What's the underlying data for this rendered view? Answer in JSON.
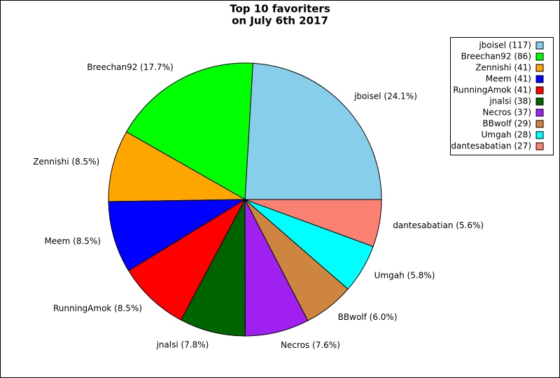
{
  "chart_data": {
    "type": "pie",
    "title": [
      "Top 10 favoriters",
      "on July 6th 2017"
    ],
    "categories": [
      "jboisel (117)",
      "Breechan92 (86)",
      "Zennishi (41)",
      "Meem (41)",
      "RunningAmok (41)",
      "jnalsi (38)",
      "Necros (37)",
      "BBwolf (29)",
      "Umgah (28)",
      "dantesabatian (27)"
    ],
    "values": [
      24.1,
      17.7,
      8.5,
      8.5,
      8.5,
      7.8,
      7.6,
      6.0,
      5.8,
      5.6
    ],
    "value_labels": [
      "jboisel (24.1%)",
      "Breechan92 (17.7%)",
      "Zennishi (8.5%)",
      "Meem (8.5%)",
      "RunningAmok (8.5%)",
      "jnalsi (7.8%)",
      "Necros (7.6%)",
      "BBwolf (6.0%)",
      "Umgah (5.8%)",
      "dantesabatian (5.6%)"
    ],
    "colors": [
      "#87ceeb",
      "#00ff00",
      "#ffa500",
      "#0000ff",
      "#ff0000",
      "#006400",
      "#a020f0",
      "#cd853f",
      "#00ffff",
      "#fa8072"
    ],
    "legend": "upper right"
  }
}
